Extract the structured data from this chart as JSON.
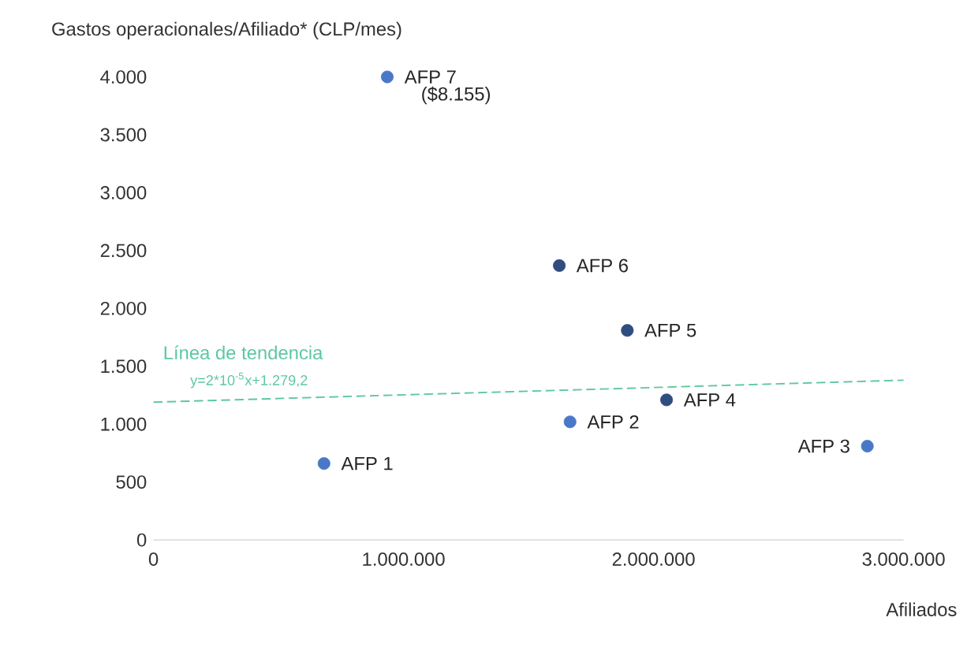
{
  "chart_data": {
    "type": "scatter",
    "xlabel": "Afiliados",
    "ylabel": "Gastos operacionales/Afiliado* (CLP/mes)",
    "xlim": [
      0,
      3000000
    ],
    "ylim": [
      0,
      4000
    ],
    "xticks": [
      {
        "value": 0,
        "label": "0"
      },
      {
        "value": 1000000,
        "label": "1.000.000"
      },
      {
        "value": 2000000,
        "label": "2.000.000"
      },
      {
        "value": 3000000,
        "label": "3.000.000"
      }
    ],
    "yticks": [
      {
        "value": 0,
        "label": "0"
      },
      {
        "value": 500,
        "label": "500"
      },
      {
        "value": 1000,
        "label": "1.000"
      },
      {
        "value": 1500,
        "label": "1.500"
      },
      {
        "value": 2000,
        "label": "2.000"
      },
      {
        "value": 2500,
        "label": "2.500"
      },
      {
        "value": 3000,
        "label": "3.000"
      },
      {
        "value": 3500,
        "label": "3.500"
      },
      {
        "value": 4000,
        "label": "4.000"
      }
    ],
    "grid": false,
    "series": [
      {
        "name": "AFP 1",
        "color": "#4a78c8",
        "marker": "circle",
        "x": [
          682000
        ],
        "values": [
          660
        ]
      },
      {
        "name": "AFP 2",
        "color": "#4a78c8",
        "marker": "circle",
        "x": [
          1666000
        ],
        "values": [
          1020
        ]
      },
      {
        "name": "AFP 3",
        "color": "#4a78c8",
        "marker": "circle",
        "x": [
          2855000
        ],
        "values": [
          810
        ]
      },
      {
        "name": "AFP 4",
        "color": "#2f4d7e",
        "marker": "circle",
        "x": [
          2052000
        ],
        "values": [
          1210
        ]
      },
      {
        "name": "AFP 5",
        "color": "#2f4d7e",
        "marker": "circle",
        "x": [
          1895000
        ],
        "values": [
          1810
        ]
      },
      {
        "name": "AFP 6",
        "color": "#2f4d7e",
        "marker": "circle",
        "x": [
          1623000
        ],
        "values": [
          2370
        ]
      },
      {
        "name": "AFP 7",
        "color": "#4a78c8",
        "marker": "circle",
        "x": [
          935000
        ],
        "values": [
          4000
        ]
      },
      {
        "name": "Línea de tendencia",
        "type": "line",
        "line_style": "dashed",
        "color": "#5cc8a0",
        "x": [
          0,
          3000000
        ],
        "values": [
          1190,
          1380
        ]
      }
    ],
    "annotations": [
      "y=2*10$^{-5}$x+1.279,2",
      {
        "text": "($8.155)",
        "x": 935000,
        "y": 4000
      }
    ]
  }
}
